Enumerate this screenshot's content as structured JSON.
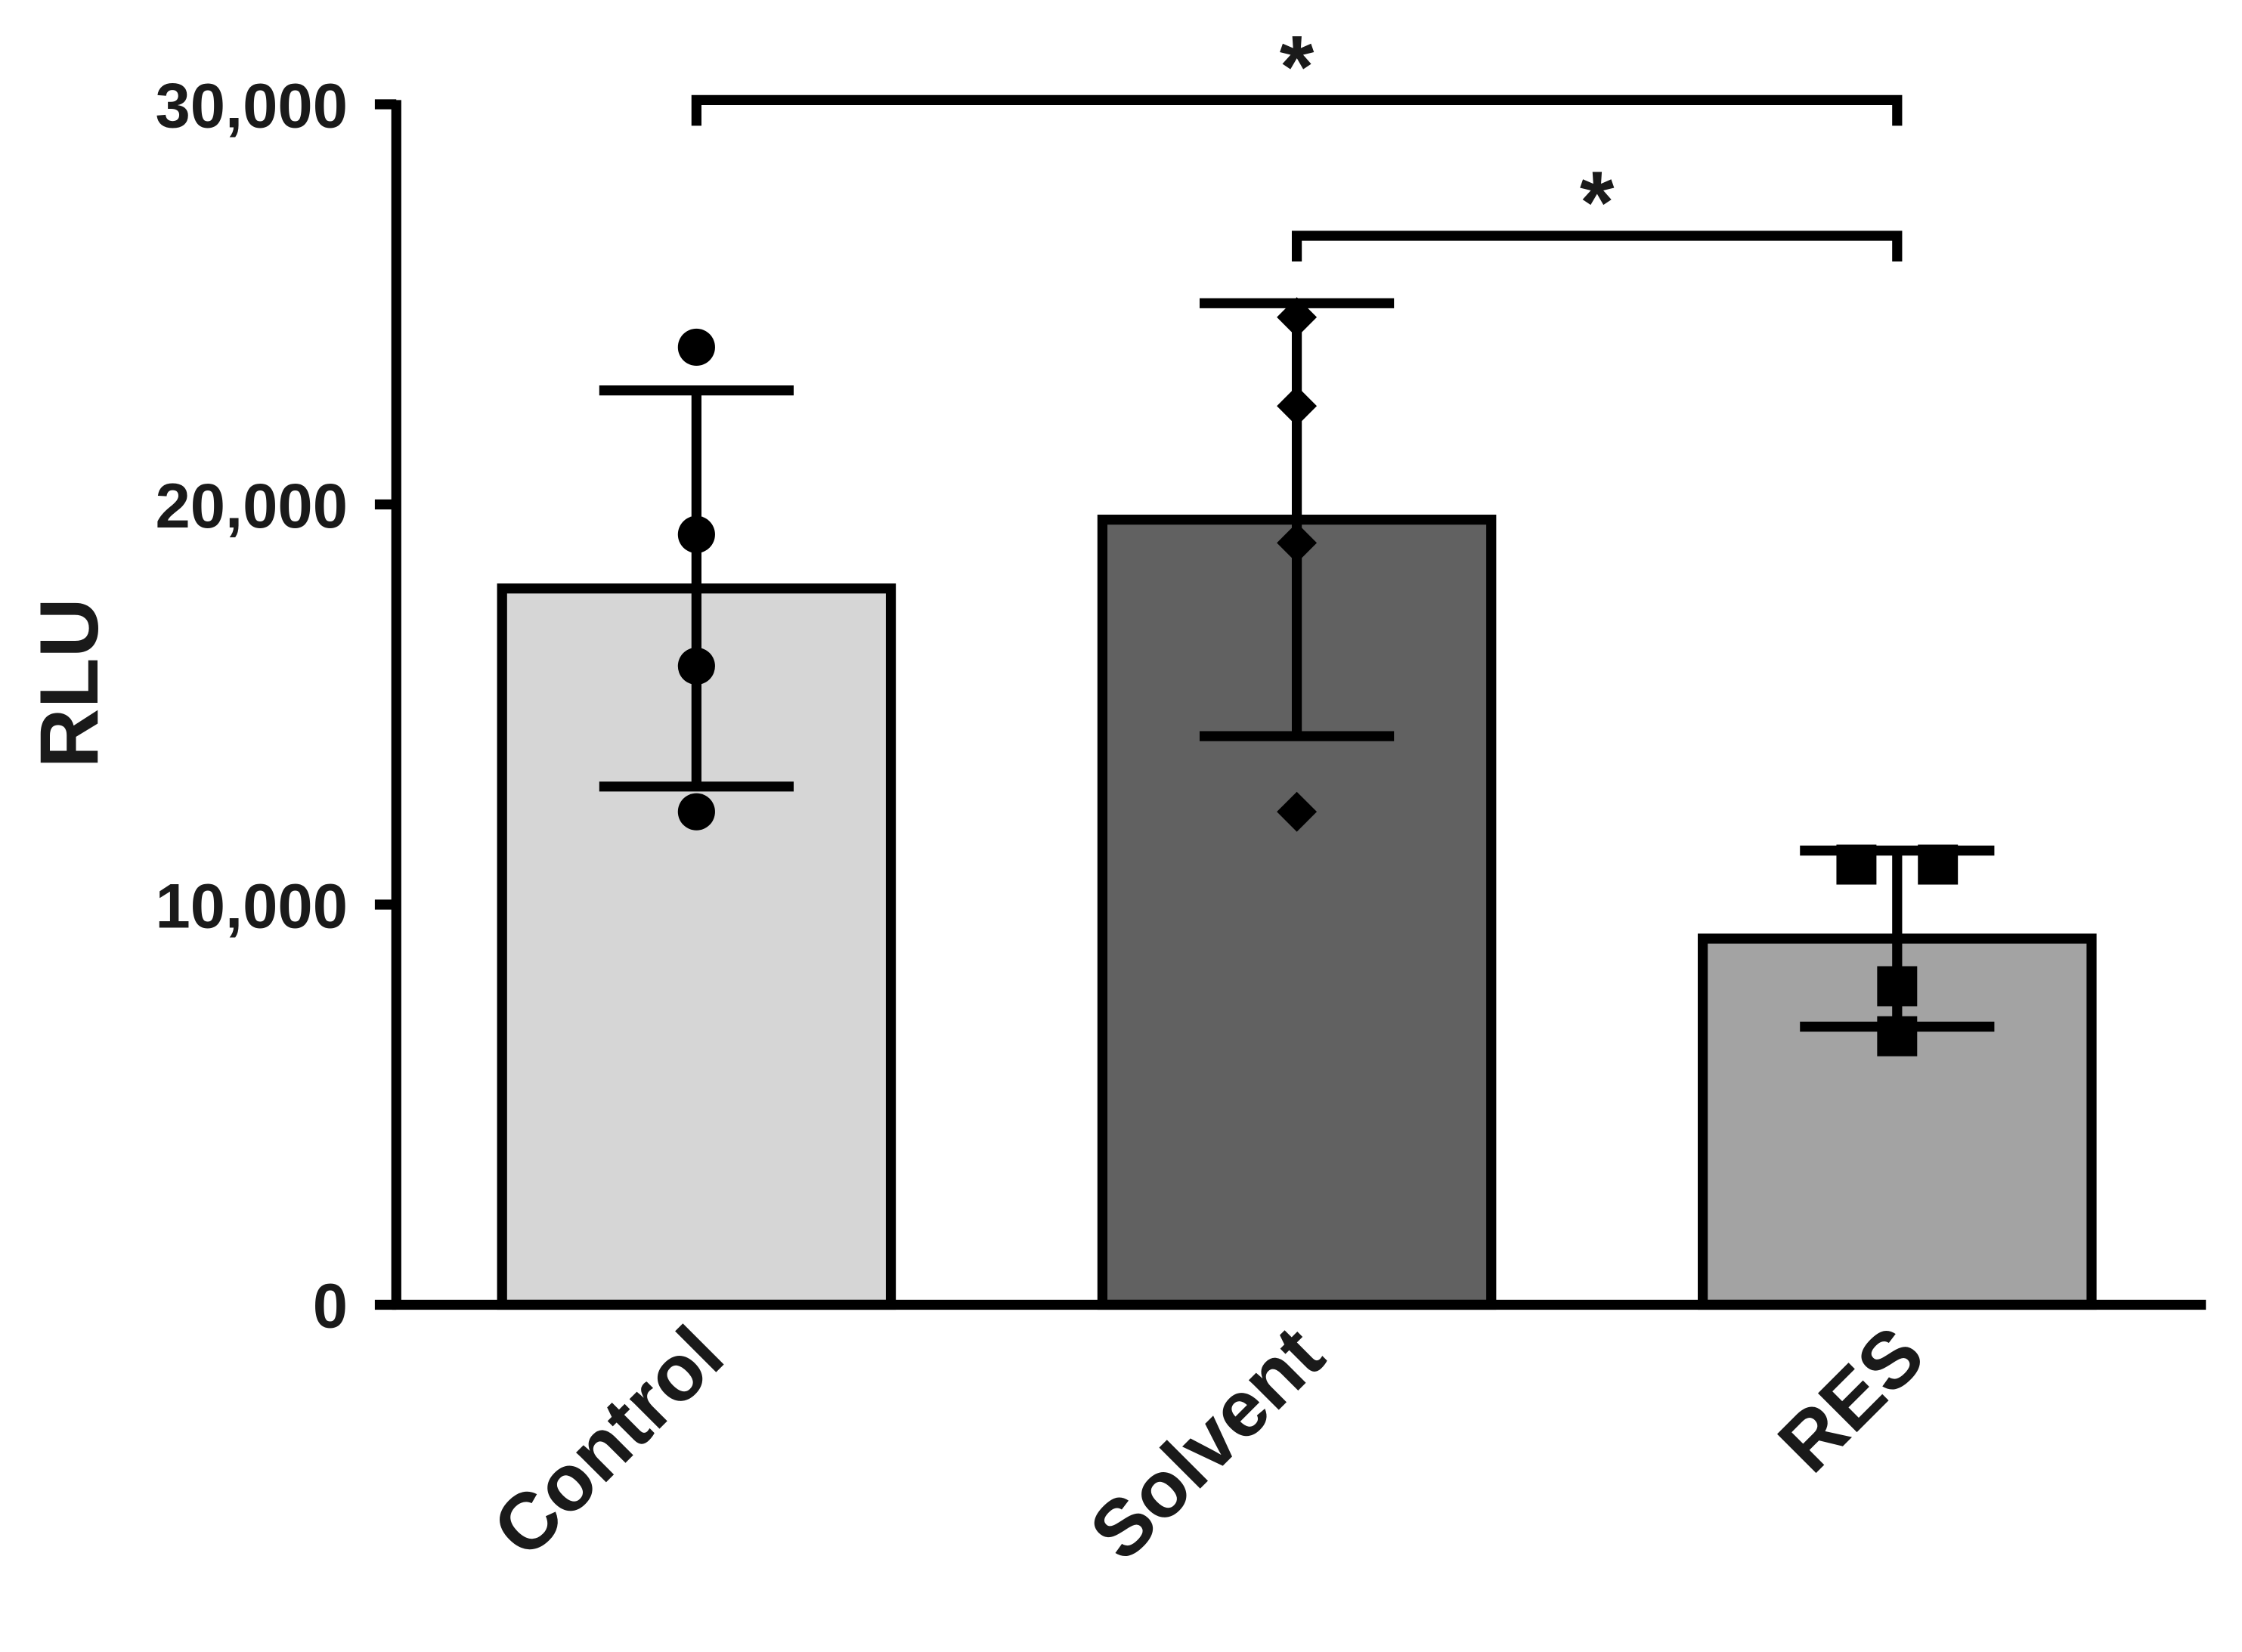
{
  "chart_data": {
    "type": "bar",
    "y_label": "RLU",
    "categories": [
      "Control",
      "Solvent",
      "RES"
    ],
    "values": [
      17900,
      19620,
      9150
    ],
    "errors": [
      4950,
      5410,
      2200
    ],
    "colors": [
      "#d6d6d6",
      "#616161",
      "#a3a3a3"
    ],
    "markers": [
      "circle",
      "diamond",
      "square"
    ],
    "points": [
      [
        23930,
        19250,
        15960,
        12320
      ],
      [
        24680,
        22460,
        19040,
        12320
      ],
      [
        11000,
        11000,
        7960,
        6710
      ]
    ],
    "ylim": [
      0,
      30000
    ],
    "yticks": [
      0,
      {
        "value": 10000,
        "label": "10,000"
      },
      {
        "value": 20000,
        "label": "20,000"
      },
      {
        "value": 30000,
        "label": "30,000"
      }
    ],
    "annotations": [
      {
        "text": "*",
        "from": 0,
        "to": 2
      },
      {
        "text": "*",
        "from": 1,
        "to": 2
      }
    ]
  }
}
